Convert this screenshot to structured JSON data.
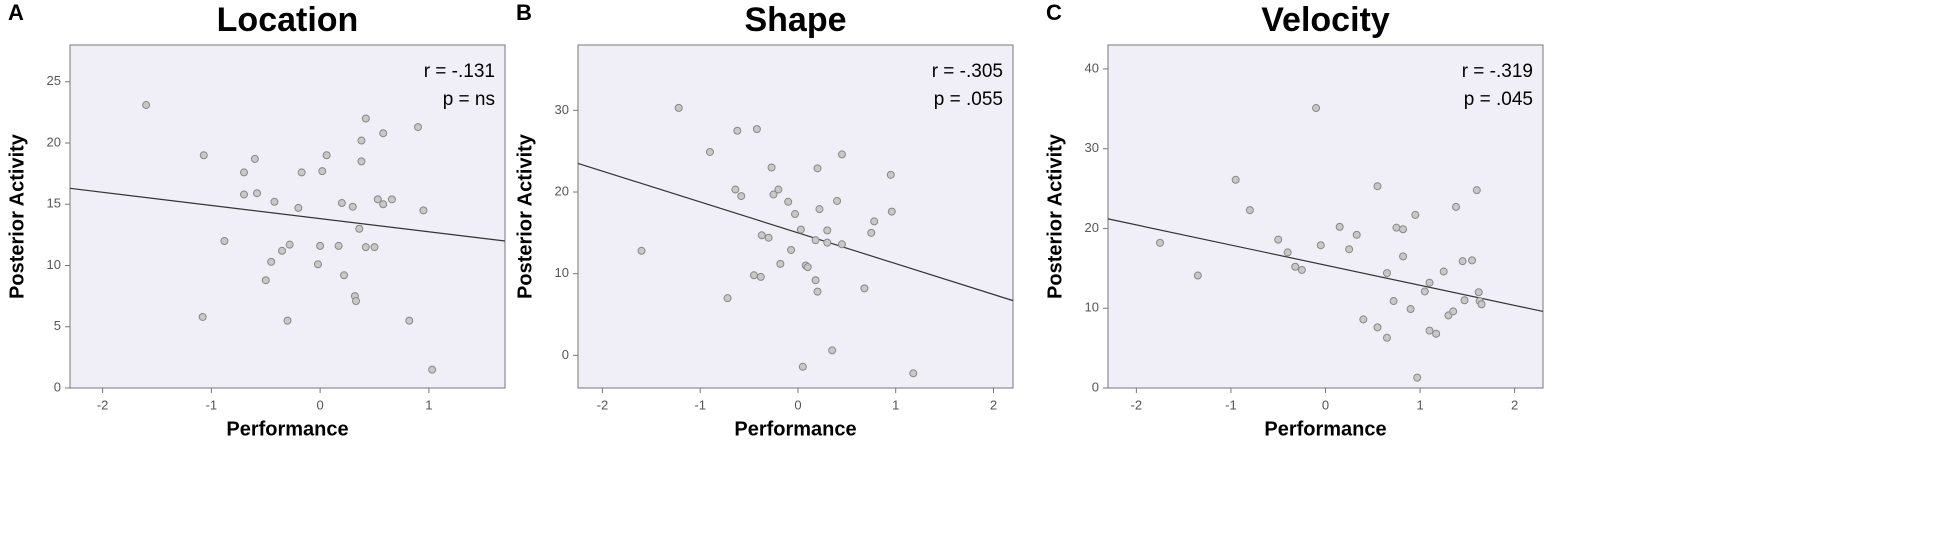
{
  "chart_data": [
    {
      "type": "scatter",
      "panel": "A",
      "title": "Location",
      "xlabel": "Performance",
      "ylabel": "Posterior Activity",
      "annotations": [
        "r = -.131",
        "p = ns"
      ],
      "color": "#888888",
      "fill": "#c8c8c8",
      "background": "#f0eff7",
      "xlim": [
        -2.3,
        1.7
      ],
      "ylim": [
        0,
        28
      ],
      "xticks": [
        -2,
        -1,
        0,
        1
      ],
      "yticks": [
        0,
        5,
        10,
        15,
        20,
        25
      ],
      "x": [
        -1.6,
        -1.07,
        -1.08,
        -0.88,
        -0.7,
        -0.7,
        -0.6,
        -0.58,
        -0.5,
        -0.45,
        -0.42,
        -0.35,
        -0.3,
        -0.28,
        -0.2,
        -0.17,
        0,
        -0.02,
        0.02,
        0.06,
        0.17,
        0.2,
        0.22,
        0.3,
        0.32,
        0.33,
        0.36,
        0.38,
        0.38,
        0.42,
        0.42,
        0.5,
        0.53,
        0.58,
        0.58,
        0.66,
        0.82,
        0.9,
        0.95,
        1.03
      ],
      "y": [
        23.1,
        19.0,
        5.8,
        12.0,
        17.6,
        15.8,
        18.7,
        15.9,
        8.8,
        10.3,
        15.2,
        11.2,
        5.5,
        11.7,
        14.7,
        17.6,
        11.6,
        10.1,
        17.7,
        19.0,
        11.6,
        15.1,
        9.2,
        14.8,
        7.5,
        7.1,
        13.0,
        20.2,
        18.5,
        11.5,
        22.0,
        11.5,
        15.4,
        15.0,
        20.8,
        15.4,
        5.5,
        21.3,
        14.5,
        1.5
      ],
      "fit": {
        "x": [
          -2.3,
          1.7
        ],
        "y": [
          16.3,
          12.0
        ]
      }
    },
    {
      "type": "scatter",
      "panel": "B",
      "title": "Shape",
      "xlabel": "Performance",
      "ylabel": "Posterior Activity",
      "annotations": [
        "r = -.305",
        "p = .055"
      ],
      "color": "#888888",
      "fill": "#c8c8c8",
      "background": "#f0eff7",
      "xlim": [
        -2.25,
        2.2
      ],
      "ylim": [
        -4,
        38
      ],
      "xticks": [
        -2,
        -1,
        0,
        1,
        2
      ],
      "yticks": [
        0,
        10,
        20,
        30
      ],
      "x": [
        -1.6,
        -1.22,
        -0.9,
        -0.72,
        -0.64,
        -0.62,
        -0.58,
        -0.42,
        -0.45,
        -0.38,
        -0.37,
        -0.3,
        -0.27,
        -0.25,
        -0.2,
        -0.18,
        -0.1,
        -0.07,
        -0.03,
        0.03,
        0.05,
        0.08,
        0.1,
        0.18,
        0.18,
        0.2,
        0.2,
        0.22,
        0.3,
        0.3,
        0.35,
        0.4,
        0.45,
        0.45,
        0.68,
        0.75,
        0.78,
        0.95,
        0.96,
        1.18
      ],
      "y": [
        12.8,
        30.3,
        24.9,
        7.0,
        20.3,
        27.5,
        19.5,
        27.7,
        9.8,
        9.6,
        14.7,
        14.4,
        23.0,
        19.7,
        20.3,
        11.2,
        18.8,
        12.9,
        17.3,
        15.4,
        -1.4,
        11.0,
        10.8,
        14.1,
        9.2,
        7.8,
        22.9,
        17.9,
        13.8,
        15.3,
        0.6,
        18.9,
        13.6,
        24.6,
        8.2,
        15.0,
        16.4,
        22.1,
        17.6,
        -2.2
      ],
      "fit": {
        "x": [
          -2.25,
          2.2
        ],
        "y": [
          23.5,
          6.7
        ]
      }
    },
    {
      "type": "scatter",
      "panel": "C",
      "title": "Velocity",
      "xlabel": "Performance",
      "ylabel": "Posterior Activity",
      "annotations": [
        "r = -.319",
        "p = .045"
      ],
      "color": "#888888",
      "fill": "#c8c8c8",
      "background": "#f0eff7",
      "xlim": [
        -2.3,
        2.3
      ],
      "ylim": [
        0,
        43
      ],
      "xticks": [
        -2,
        -1,
        0,
        1,
        2
      ],
      "yticks": [
        0,
        10,
        20,
        30,
        40
      ],
      "x": [
        -1.75,
        -1.35,
        -0.95,
        -0.8,
        -0.5,
        -0.4,
        -0.32,
        -0.25,
        -0.1,
        -0.05,
        0.15,
        0.25,
        0.33,
        0.4,
        0.55,
        0.55,
        0.65,
        0.65,
        0.72,
        0.75,
        0.82,
        0.82,
        0.9,
        0.95,
        0.97,
        1.05,
        1.1,
        1.1,
        1.17,
        1.25,
        1.3,
        1.35,
        1.38,
        1.45,
        1.47,
        1.55,
        1.6,
        1.62,
        1.63,
        1.65
      ],
      "y": [
        18.2,
        14.1,
        26.1,
        22.3,
        18.6,
        17.0,
        15.2,
        14.8,
        35.1,
        17.9,
        20.2,
        17.4,
        19.2,
        8.6,
        7.6,
        25.3,
        6.3,
        14.4,
        10.9,
        20.1,
        19.9,
        16.5,
        9.9,
        21.7,
        1.3,
        12.1,
        13.2,
        7.2,
        6.8,
        14.6,
        9.1,
        9.6,
        22.7,
        15.9,
        11.0,
        16.0,
        24.8,
        12.0,
        10.9,
        10.5
      ],
      "fit": {
        "x": [
          -2.3,
          2.3
        ],
        "y": [
          21.2,
          9.6
        ]
      }
    }
  ]
}
